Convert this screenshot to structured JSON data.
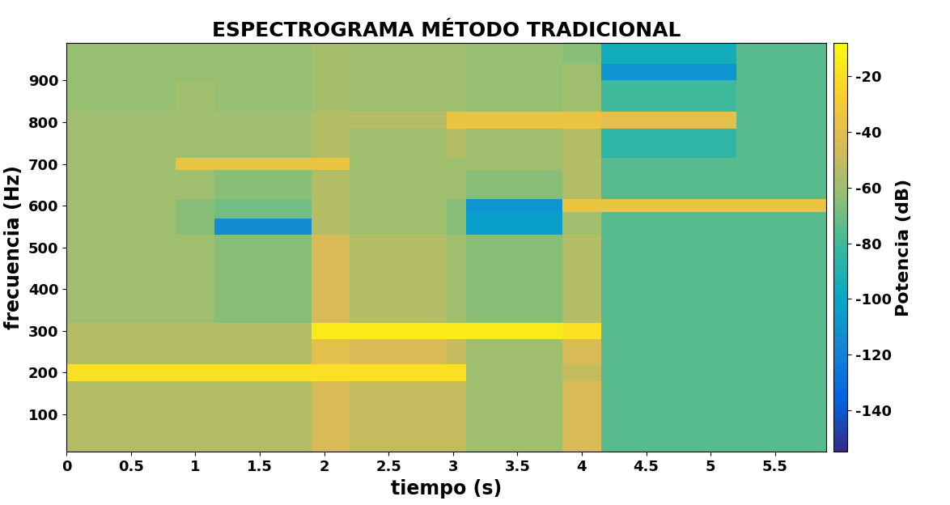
{
  "chart_data": {
    "type": "heatmap",
    "title": "ESPECTROGRAMA MÉTODO TRADICIONAL",
    "x_label": "tiempo (s)",
    "y_label": "frecuencia (Hz)",
    "xlim": [
      0,
      5.9
    ],
    "xticks": [
      0,
      0.5,
      1,
      1.5,
      2,
      2.5,
      3,
      3.5,
      4,
      4.5,
      5,
      5.5
    ],
    "ylim": [
      10,
      990
    ],
    "yticks": [
      100,
      200,
      300,
      400,
      500,
      600,
      700,
      800,
      900
    ],
    "x_edges": [
      0,
      0.85,
      1.15,
      1.9,
      2.2,
      2.95,
      3.1,
      3.85,
      4.15,
      5.2,
      5.9
    ],
    "y_edges": [
      10,
      180,
      220,
      280,
      320,
      530,
      570,
      585,
      615,
      685,
      715,
      785,
      825,
      900,
      940,
      990
    ],
    "cells": [
      [
        -55,
        -55,
        -55,
        -45,
        -50,
        -50,
        -60,
        -45,
        -75,
        -75
      ],
      [
        -20,
        -20,
        -20,
        -20,
        -20,
        -20,
        -60,
        -50,
        -75,
        -75
      ],
      [
        -55,
        -55,
        -55,
        -40,
        -45,
        -50,
        -60,
        -45,
        -75,
        -75
      ],
      [
        -55,
        -55,
        -55,
        -15,
        -15,
        -15,
        -15,
        -20,
        -75,
        -75
      ],
      [
        -60,
        -60,
        -65,
        -45,
        -55,
        -60,
        -65,
        -55,
        -75,
        -75
      ],
      [
        -60,
        -65,
        -115,
        -55,
        -60,
        -65,
        -105,
        -60,
        -75,
        -75
      ],
      [
        -60,
        -65,
        -70,
        -55,
        -60,
        -65,
        -105,
        -60,
        -75,
        -75
      ],
      [
        -60,
        -65,
        -70,
        -55,
        -60,
        -65,
        -110,
        -35,
        -35,
        -35
      ],
      [
        -60,
        -60,
        -65,
        -55,
        -60,
        -60,
        -65,
        -55,
        -75,
        -75
      ],
      [
        -60,
        -35,
        -35,
        -35,
        -60,
        -60,
        -60,
        -55,
        -75,
        -75
      ],
      [
        -60,
        -60,
        -60,
        -55,
        -60,
        -55,
        -60,
        -55,
        -85,
        -75
      ],
      [
        -60,
        -60,
        -60,
        -55,
        -55,
        -35,
        -35,
        -35,
        -40,
        -75
      ],
      [
        -62,
        -60,
        -62,
        -58,
        -60,
        -60,
        -62,
        -60,
        -80,
        -75
      ],
      [
        -62,
        -62,
        -62,
        -58,
        -60,
        -60,
        -62,
        -60,
        -110,
        -75
      ],
      [
        -62,
        -62,
        -62,
        -58,
        -60,
        -60,
        -62,
        -65,
        -95,
        -75
      ]
    ],
    "colorbar_label": "Potencia (dB)",
    "colorbar_range": [
      -155,
      -8
    ],
    "colorbar_ticks": [
      -140,
      -120,
      -100,
      -80,
      -60,
      -40,
      -20
    ]
  }
}
